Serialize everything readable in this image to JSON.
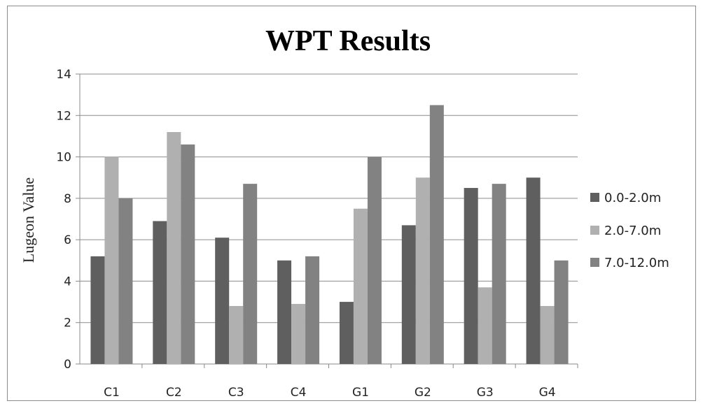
{
  "chart_data": {
    "type": "bar",
    "title": "WPT Results",
    "xlabel": "",
    "ylabel": "Lugeon Value",
    "ylim": [
      0,
      14
    ],
    "yticks": [
      "0",
      "2",
      "4",
      "6",
      "8",
      "10",
      "12",
      "14"
    ],
    "grid": true,
    "legend_position": "right",
    "categories": [
      "C1",
      "C2",
      "C3",
      "C4",
      "G1",
      "G2",
      "G3",
      "G4"
    ],
    "series": [
      {
        "name": "0.0-2.0m",
        "color": "#5f5f5f",
        "values": [
          5.2,
          6.9,
          6.1,
          5.0,
          3.0,
          6.7,
          8.5,
          9.0
        ]
      },
      {
        "name": "2.0-7.0m",
        "color": "#b0b0b0",
        "values": [
          10.0,
          11.2,
          2.8,
          2.9,
          7.5,
          9.0,
          3.7,
          2.8
        ]
      },
      {
        "name": "7.0-12.0m",
        "color": "#828282",
        "values": [
          8.0,
          10.6,
          8.7,
          5.2,
          10.0,
          12.5,
          8.7,
          5.0
        ]
      }
    ]
  }
}
